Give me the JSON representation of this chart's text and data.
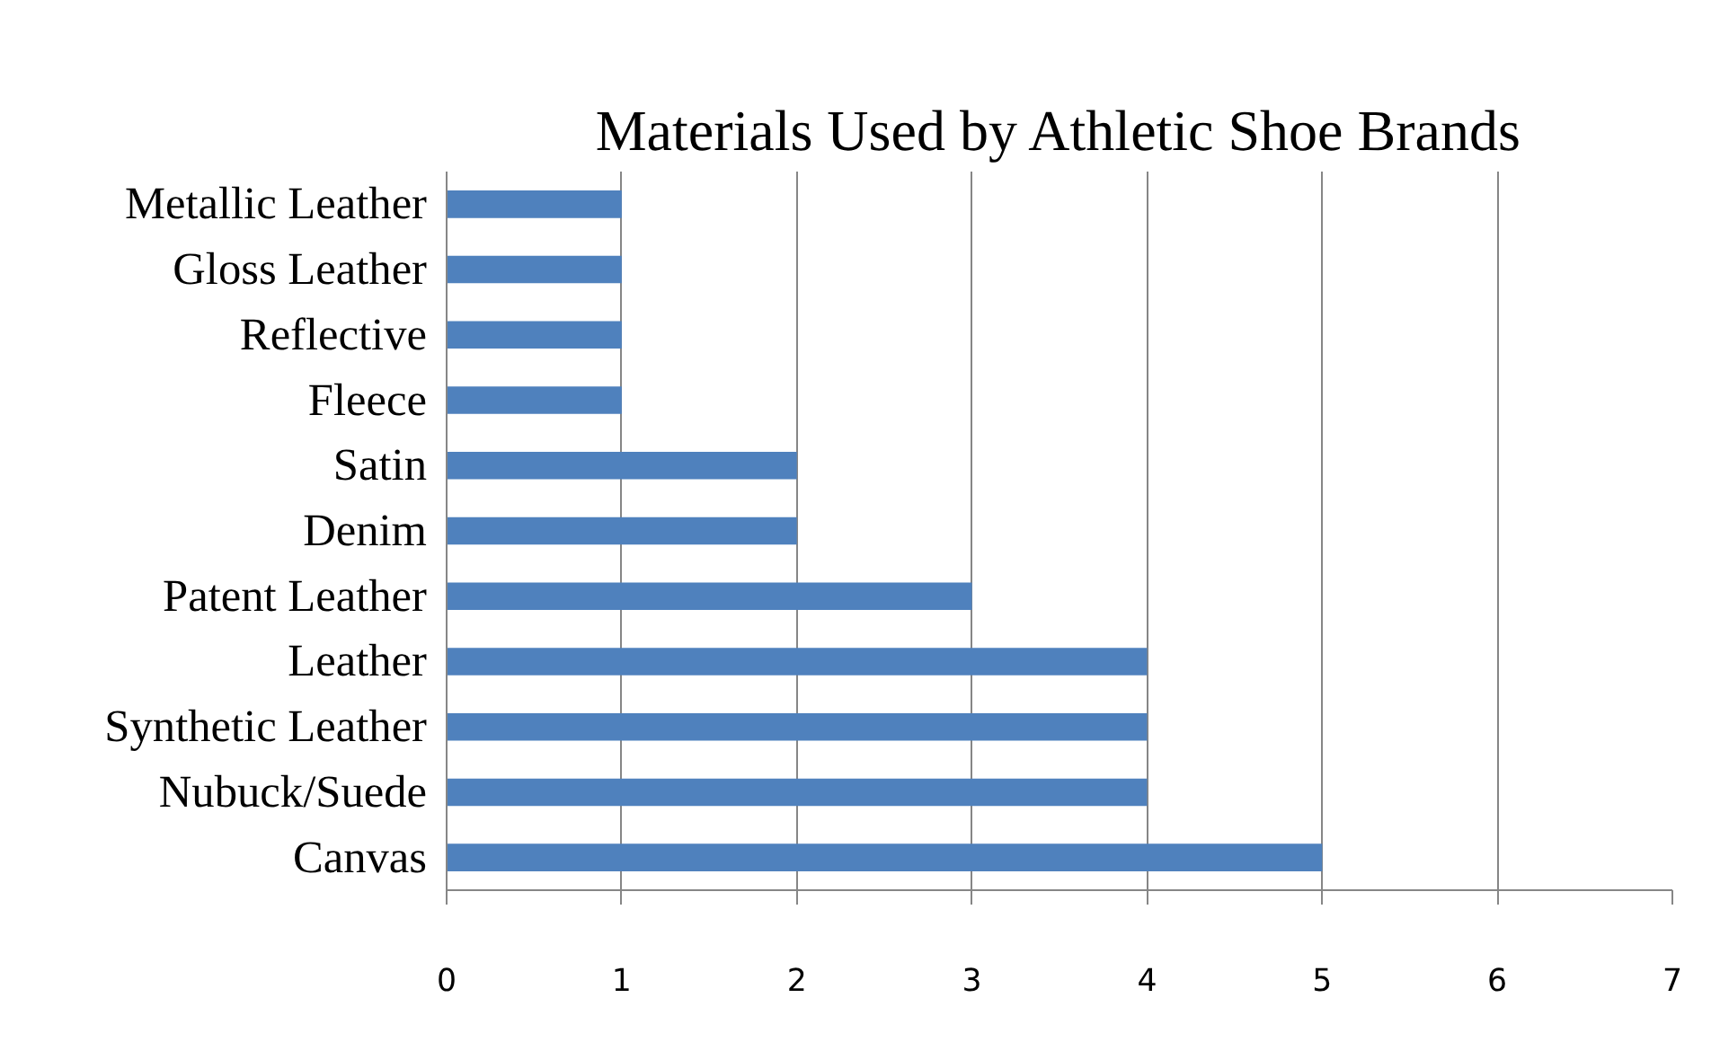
{
  "chart_data": {
    "type": "bar",
    "orientation": "horizontal",
    "title": "Materials Used by Athletic Shoe Brands",
    "categories": [
      "Metallic Leather",
      "Gloss Leather",
      "Reflective",
      "Fleece",
      "Satin",
      "Denim",
      "Patent Leather",
      "Leather",
      "Synthetic Leather",
      "Nubuck/Suede",
      "Canvas"
    ],
    "values": [
      1,
      1,
      1,
      1,
      2,
      2,
      3,
      4,
      4,
      4,
      5
    ],
    "color": "#4f81bd",
    "xlim": [
      0,
      7
    ],
    "xticks": [
      0,
      1,
      2,
      3,
      4,
      5,
      6,
      7
    ],
    "grid": "x"
  }
}
